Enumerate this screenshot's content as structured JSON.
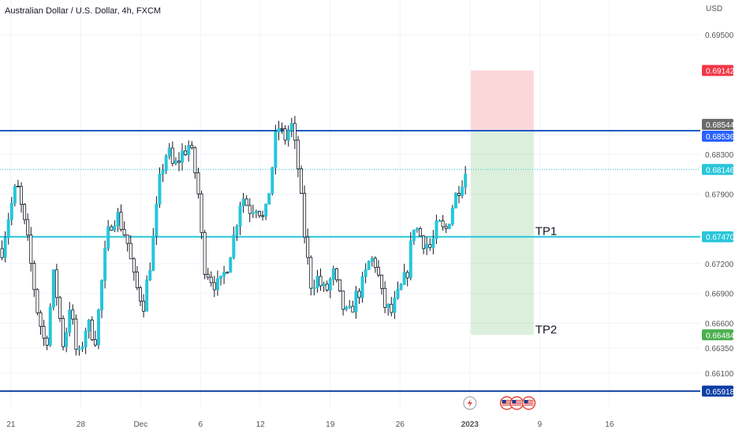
{
  "header": {
    "title": "Australian Dollar / U.S. Dollar, 4h, FXCM"
  },
  "currency": "USD",
  "chart_data": {
    "type": "candlestick",
    "symbol": "AUDUSD",
    "timeframe": "4h",
    "ylim": [
      0.6575,
      0.6985
    ],
    "price_ticks": [
      "0.69500",
      "0.68300",
      "0.67900",
      "0.67200",
      "0.66900",
      "0.66600",
      "0.66350",
      "0.66100"
    ],
    "date_ticks": [
      "21",
      "28",
      "Dec",
      "6",
      "12",
      "19",
      "26",
      "2023",
      "9",
      "16"
    ],
    "date_tick_positions": [
      0.9,
      7.9,
      13.9,
      19.9,
      25.9,
      32.9,
      39.9,
      46.9,
      53.9,
      60.9
    ],
    "horizontal_lines": [
      {
        "price": 0.68536,
        "color": "#1e5bc6"
      },
      {
        "price": 0.6747,
        "color": "#26c6da"
      },
      {
        "price": 0.65918,
        "color": "#0d3fa6"
      }
    ],
    "price_badges": [
      {
        "value": "0.69142",
        "color": "#f23645"
      },
      {
        "value": "0.68544",
        "color": "#6b6b6b"
      },
      {
        "value": "0.68536",
        "color": "#2962ff"
      },
      {
        "value": "0.68146",
        "color": "#26c6da"
      },
      {
        "value": "0.67470",
        "color": "#26c6da"
      },
      {
        "value": "0.66484",
        "color": "#4caf50"
      },
      {
        "value": "0.65918",
        "color": "#0d3fa6"
      }
    ],
    "current_price": 0.68146,
    "position": {
      "type": "short",
      "stop": 0.69142,
      "entry": 0.68544,
      "target": 0.66484,
      "start_day": 47.0,
      "end_day": 53.3,
      "labels": [
        {
          "text": "TP1",
          "price": 0.6747
        },
        {
          "text": "TP2",
          "price": 0.66484
        }
      ]
    },
    "waypoints": [
      [
        0,
        0.6735
      ],
      [
        0.7,
        0.677
      ],
      [
        1.5,
        0.68
      ],
      [
        2.6,
        0.674
      ],
      [
        3.6,
        0.667
      ],
      [
        4.4,
        0.6635
      ],
      [
        5.2,
        0.671
      ],
      [
        6.2,
        0.6635
      ],
      [
        6.8,
        0.668
      ],
      [
        7.6,
        0.662
      ],
      [
        8.5,
        0.666
      ],
      [
        9.4,
        0.6645
      ],
      [
        10.2,
        0.672
      ],
      [
        10.8,
        0.676
      ],
      [
        11.5,
        0.677
      ],
      [
        12.5,
        0.6745
      ],
      [
        13.3,
        0.67
      ],
      [
        14.2,
        0.668
      ],
      [
        15.0,
        0.673
      ],
      [
        15.9,
        0.681
      ],
      [
        16.6,
        0.6835
      ],
      [
        17.2,
        0.6815
      ],
      [
        18.0,
        0.683
      ],
      [
        18.8,
        0.684
      ],
      [
        19.6,
        0.68
      ],
      [
        20.2,
        0.672
      ],
      [
        21.0,
        0.6705
      ],
      [
        21.8,
        0.6695
      ],
      [
        22.6,
        0.672
      ],
      [
        23.3,
        0.675
      ],
      [
        24.0,
        0.679
      ],
      [
        24.8,
        0.6775
      ],
      [
        25.6,
        0.678
      ],
      [
        26.3,
        0.676
      ],
      [
        27.0,
        0.681
      ],
      [
        27.6,
        0.686
      ],
      [
        28.3,
        0.6845
      ],
      [
        29.0,
        0.686
      ],
      [
        29.7,
        0.6815
      ],
      [
        30.2,
        0.676
      ],
      [
        30.9,
        0.67
      ],
      [
        31.6,
        0.6705
      ],
      [
        32.4,
        0.669
      ],
      [
        33.2,
        0.671
      ],
      [
        34.0,
        0.668
      ],
      [
        34.7,
        0.6665
      ],
      [
        35.4,
        0.6685
      ],
      [
        36.2,
        0.67
      ],
      [
        36.9,
        0.6725
      ],
      [
        37.5,
        0.672
      ],
      [
        38.2,
        0.668
      ],
      [
        39.0,
        0.667
      ],
      [
        39.8,
        0.669
      ],
      [
        40.6,
        0.671
      ],
      [
        41.3,
        0.676
      ],
      [
        42.1,
        0.6745
      ],
      [
        43.0,
        0.6735
      ],
      [
        43.7,
        0.676
      ],
      [
        44.4,
        0.675
      ],
      [
        45.2,
        0.678
      ],
      [
        45.9,
        0.68
      ],
      [
        46.6,
        0.6815
      ]
    ],
    "event_markers": [
      {
        "type": "bolt-icon",
        "day": 46.9
      },
      {
        "type": "us-flag-icon",
        "day": 50.6
      },
      {
        "type": "us-flag-icon",
        "day": 51.6
      },
      {
        "type": "us-flag-icon",
        "day": 52.8
      }
    ]
  }
}
